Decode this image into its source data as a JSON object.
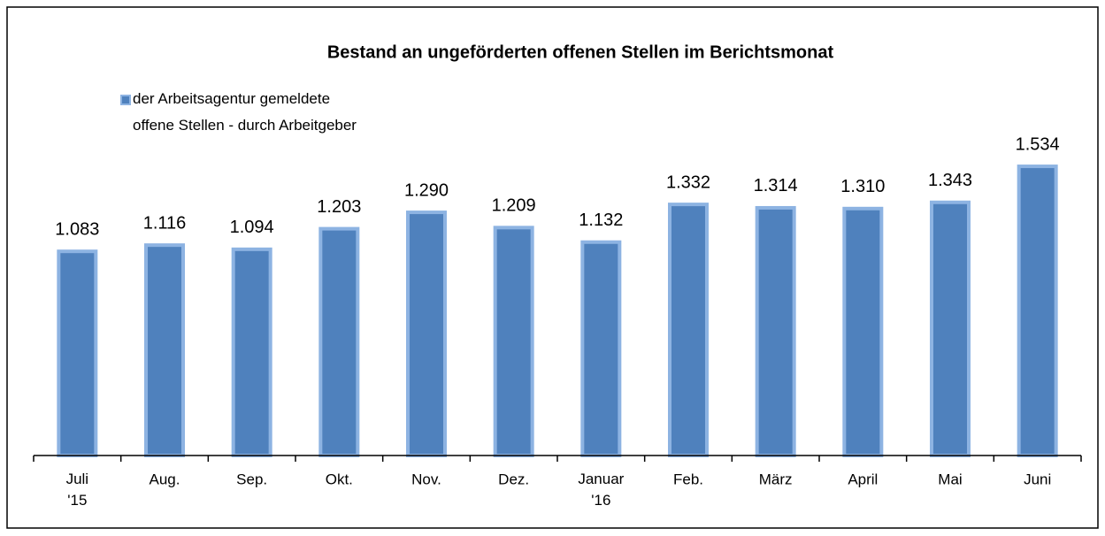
{
  "chart_data": {
    "type": "bar",
    "title": "Bestand an ungeförderten offenen Stellen im Berichtsmonat",
    "categories": [
      "Juli\n'15",
      "Aug.",
      "Sep.",
      "Okt.",
      "Nov.",
      "Dez.",
      "Januar\n'16",
      "Feb.",
      "März",
      "April",
      "Mai",
      "Juni"
    ],
    "series": [
      {
        "name": "der Arbeitsagentur gemeldete\noffene Stellen - durch Arbeitgeber",
        "color": "#4f81bd",
        "edge_color": "#8db3e2",
        "values": [
          1083,
          1116,
          1094,
          1203,
          1290,
          1209,
          1132,
          1332,
          1314,
          1310,
          1343,
          1534
        ],
        "value_labels": [
          "1.083",
          "1.116",
          "1.094",
          "1.203",
          "1.290",
          "1.209",
          "1.132",
          "1.332",
          "1.314",
          "1.310",
          "1.343",
          "1.534"
        ]
      }
    ],
    "ylim": [
      0,
      1600
    ],
    "legend": "top-left"
  }
}
